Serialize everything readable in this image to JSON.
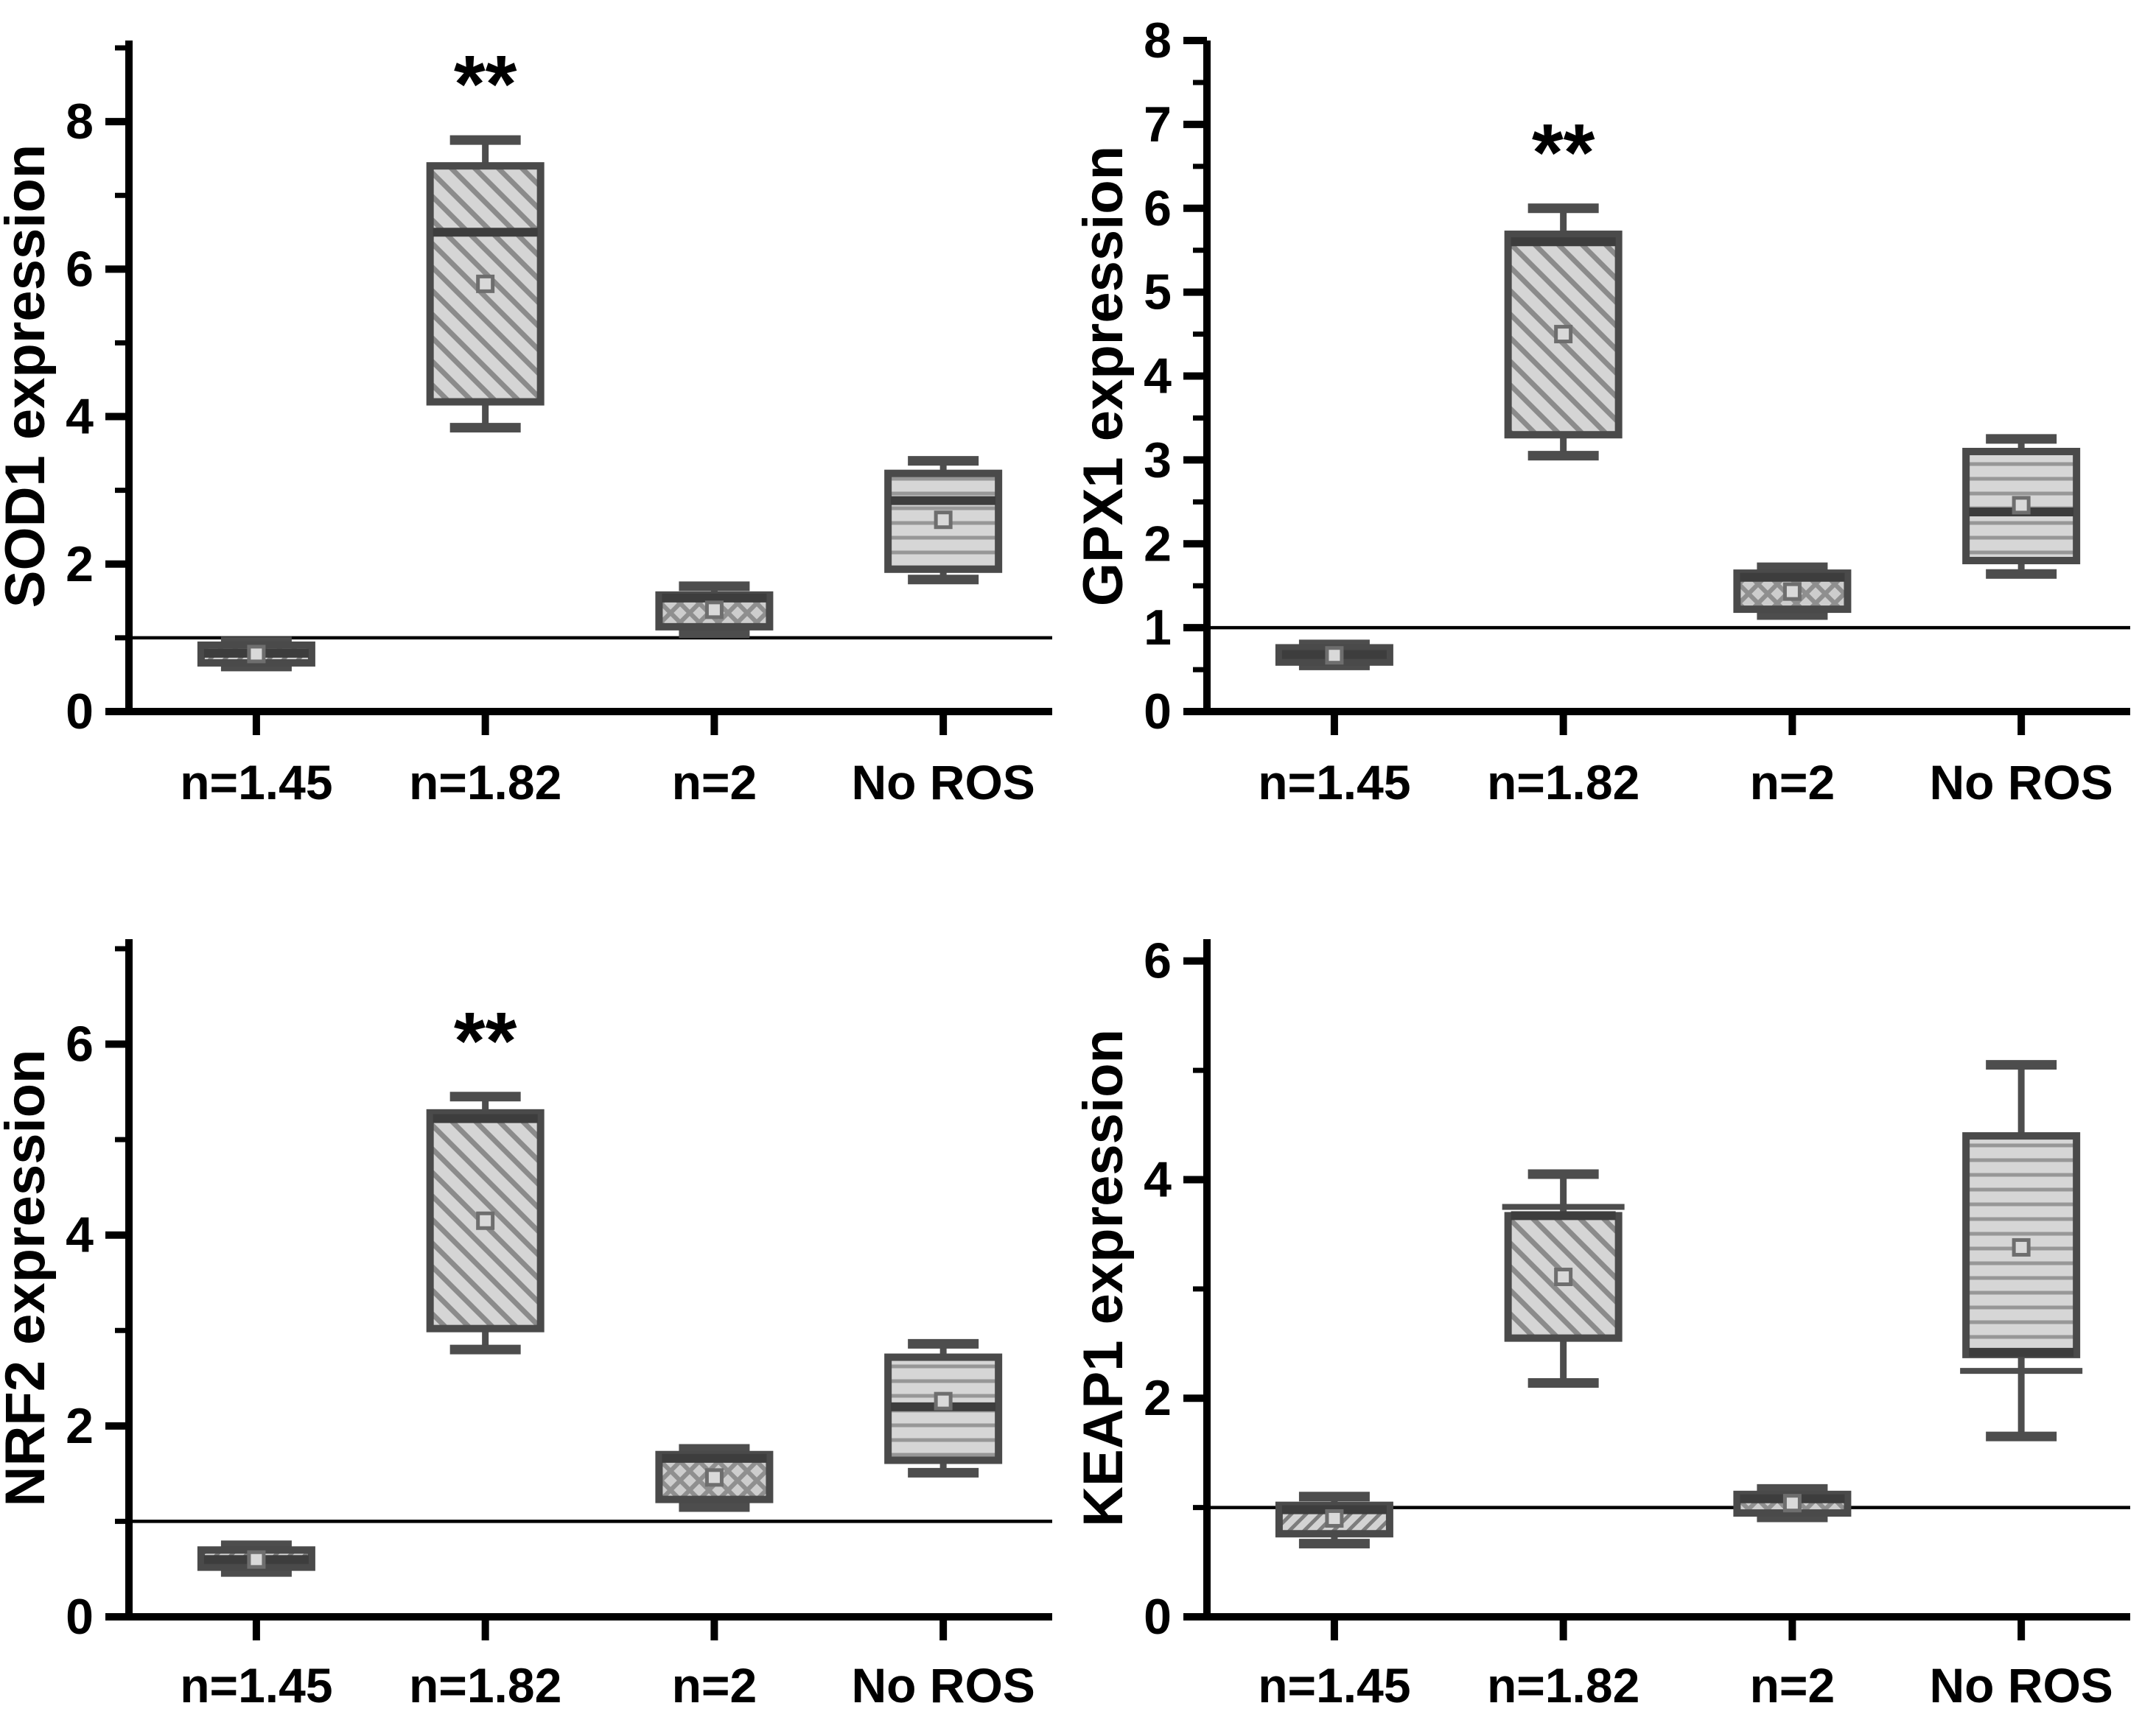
{
  "figure_title": "",
  "colors": {
    "background": "#ffffff",
    "axis": "#000000",
    "text": "#000000",
    "box_border": "#4a4a4a",
    "whisker": "#4d4d4d",
    "median": "#3d3d3d",
    "box_fill": "#d5d5d5",
    "hatch_line": "#8b8b8b",
    "mean_marker_stroke": "#6e6e6e",
    "mean_marker_fill": "#d9d9d9",
    "reference_line": "#000000"
  },
  "shared": {
    "categories": [
      "n=1.45",
      "n=1.82",
      "n=2",
      "No ROS"
    ],
    "significance_symbol": "**",
    "reference_line_y": 1.0
  },
  "chart_data": [
    {
      "type": "box",
      "id": "sod1",
      "ylabel": "SOD1 expression",
      "categories": [
        "n=1.45",
        "n=1.82",
        "n=2",
        "No ROS"
      ],
      "ylim": [
        0,
        9.1
      ],
      "y_major_ticks": [
        0,
        2,
        4,
        6,
        8
      ],
      "y_minor_ticks": [
        1,
        3,
        5,
        7,
        9
      ],
      "grid": false,
      "legend": false,
      "reference_line_y": 1.0,
      "annotations": [
        {
          "category": "n=1.82",
          "text": "**"
        }
      ],
      "boxes": [
        {
          "category": "n=1.45",
          "hatch": "fine-diagonal",
          "whisker_low": 0.61,
          "q1": 0.66,
          "median": 0.79,
          "q3": 0.9,
          "whisker_high": 0.95,
          "mean": 0.78
        },
        {
          "category": "n=1.82",
          "hatch": "diagonal",
          "whisker_low": 3.85,
          "q1": 4.2,
          "median": 6.5,
          "q3": 7.4,
          "whisker_high": 7.75,
          "mean": 5.8
        },
        {
          "category": "n=2",
          "hatch": "crosshatch",
          "whisker_low": 1.06,
          "q1": 1.15,
          "median": 1.54,
          "q3": 1.58,
          "whisker_high": 1.7,
          "mean": 1.38
        },
        {
          "category": "No ROS",
          "hatch": "horizontal",
          "whisker_low": 1.79,
          "q1": 1.93,
          "median": 2.86,
          "q3": 3.23,
          "whisker_high": 3.4,
          "mean": 2.6
        }
      ]
    },
    {
      "type": "box",
      "id": "gpx1",
      "ylabel": "GPX1 expression",
      "categories": [
        "n=1.45",
        "n=1.82",
        "n=2",
        "No ROS"
      ],
      "ylim": [
        0,
        8.0
      ],
      "y_major_ticks": [
        0,
        1,
        2,
        3,
        4,
        5,
        6,
        7,
        8
      ],
      "y_minor_ticks": [
        0.5,
        1.5,
        2.5,
        3.5,
        4.5,
        5.5,
        6.5,
        7.5
      ],
      "grid": false,
      "legend": false,
      "reference_line_y": 1.0,
      "annotations": [
        {
          "category": "n=1.82",
          "text": "**"
        }
      ],
      "boxes": [
        {
          "category": "n=1.45",
          "hatch": "fine-diagonal",
          "whisker_low": 0.55,
          "q1": 0.59,
          "median": 0.68,
          "q3": 0.76,
          "whisker_high": 0.8,
          "mean": 0.67
        },
        {
          "category": "n=1.82",
          "hatch": "diagonal",
          "whisker_low": 3.05,
          "q1": 3.3,
          "median": 5.6,
          "q3": 5.69,
          "whisker_high": 6.0,
          "mean": 4.5
        },
        {
          "category": "n=2",
          "hatch": "crosshatch",
          "whisker_low": 1.15,
          "q1": 1.22,
          "median": 1.6,
          "q3": 1.65,
          "whisker_high": 1.72,
          "mean": 1.43
        },
        {
          "category": "No ROS",
          "hatch": "horizontal",
          "whisker_low": 1.64,
          "q1": 1.8,
          "median": 2.38,
          "q3": 3.1,
          "whisker_high": 3.25,
          "mean": 2.46
        }
      ]
    },
    {
      "type": "box",
      "id": "nrf2",
      "ylabel": "NRF2 expression",
      "categories": [
        "n=1.45",
        "n=1.82",
        "n=2",
        "No ROS"
      ],
      "ylim": [
        0,
        7.1
      ],
      "y_major_ticks": [
        0,
        2,
        4,
        6
      ],
      "y_minor_ticks": [
        1,
        3,
        5,
        7
      ],
      "grid": false,
      "legend": false,
      "reference_line_y": 1.0,
      "annotations": [
        {
          "category": "n=1.82",
          "text": "**"
        }
      ],
      "boxes": [
        {
          "category": "n=1.45",
          "hatch": "fine-diagonal",
          "whisker_low": 0.47,
          "q1": 0.52,
          "median": 0.6,
          "q3": 0.7,
          "whisker_high": 0.75,
          "mean": 0.6
        },
        {
          "category": "n=1.82",
          "hatch": "diagonal",
          "whisker_low": 2.8,
          "q1": 3.02,
          "median": 5.22,
          "q3": 5.28,
          "whisker_high": 5.45,
          "mean": 4.15
        },
        {
          "category": "n=2",
          "hatch": "crosshatch",
          "whisker_low": 1.15,
          "q1": 1.23,
          "median": 1.66,
          "q3": 1.7,
          "whisker_high": 1.76,
          "mean": 1.46
        },
        {
          "category": "No ROS",
          "hatch": "horizontal",
          "whisker_low": 1.51,
          "q1": 1.64,
          "median": 2.2,
          "q3": 2.72,
          "whisker_high": 2.86,
          "mean": 2.26
        }
      ]
    },
    {
      "type": "box",
      "id": "keap1",
      "ylabel": "KEAP1 expression",
      "categories": [
        "n=1.45",
        "n=1.82",
        "n=2",
        "No ROS"
      ],
      "ylim": [
        0,
        6.2
      ],
      "y_major_ticks": [
        0,
        2,
        4,
        6
      ],
      "y_minor_ticks": [
        1,
        3,
        5
      ],
      "grid": false,
      "legend": false,
      "reference_line_y": 1.0,
      "annotations": [],
      "boxes": [
        {
          "category": "n=1.45",
          "hatch": "fine-diagonal",
          "whisker_low": 0.67,
          "q1": 0.76,
          "median": 0.98,
          "q3": 1.02,
          "whisker_high": 1.1,
          "mean": 0.9
        },
        {
          "category": "n=1.82",
          "hatch": "diagonal",
          "whisker_low": 2.14,
          "q1": 2.55,
          "median": 3.67,
          "q3": 3.67,
          "whisker_high": 4.05,
          "mean": 3.11,
          "percentile_dash_high": 3.75
        },
        {
          "category": "n=2",
          "hatch": "crosshatch",
          "whisker_low": 0.91,
          "q1": 0.95,
          "median": 1.08,
          "q3": 1.12,
          "whisker_high": 1.17,
          "mean": 1.04
        },
        {
          "category": "No ROS",
          "hatch": "horizontal",
          "whisker_low": 1.65,
          "q1": 2.4,
          "median": 2.42,
          "q3": 4.4,
          "whisker_high": 5.05,
          "mean": 3.38,
          "percentile_dash_low": 2.25
        }
      ]
    }
  ]
}
